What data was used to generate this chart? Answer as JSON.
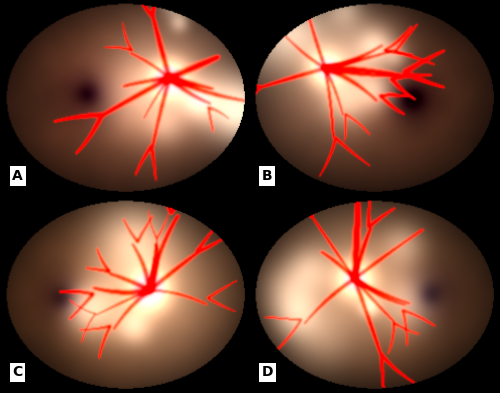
{
  "fig_width": 5.0,
  "fig_height": 3.93,
  "dpi": 100,
  "labels": [
    "A",
    "B",
    "C",
    "D"
  ],
  "label_fontsize": 10,
  "label_color": "black",
  "label_bg_color": "white",
  "bg_color": "black",
  "separator_color": "#aaaaaa",
  "panels": [
    {
      "disc_xf": 0.68,
      "disc_yf": 0.4,
      "mac_xf": 0.35,
      "mac_yf": 0.48,
      "base_r": 0.52,
      "base_g": 0.28,
      "base_b": 0.18,
      "exudate_level": 0.7,
      "vessel_density": 10,
      "seed": 11,
      "disc_bright": 1.0,
      "peridisc_glow": 0.5,
      "label": "A"
    },
    {
      "disc_xf": 0.3,
      "disc_yf": 0.35,
      "mac_xf": 0.65,
      "mac_yf": 0.5,
      "base_r": 0.45,
      "base_g": 0.25,
      "base_b": 0.16,
      "exudate_level": 0.8,
      "vessel_density": 10,
      "seed": 22,
      "disc_bright": 0.9,
      "peridisc_glow": 0.5,
      "label": "B"
    },
    {
      "disc_xf": 0.6,
      "disc_yf": 0.48,
      "mac_xf": 0.25,
      "mac_yf": 0.52,
      "base_r": 0.55,
      "base_g": 0.32,
      "base_b": 0.18,
      "exudate_level": 0.4,
      "vessel_density": 10,
      "seed": 33,
      "disc_bright": 1.1,
      "peridisc_glow": 0.6,
      "label": "C"
    },
    {
      "disc_xf": 0.42,
      "disc_yf": 0.42,
      "mac_xf": 0.72,
      "mac_yf": 0.5,
      "base_r": 0.5,
      "base_g": 0.3,
      "base_b": 0.18,
      "exudate_level": 0.65,
      "vessel_density": 10,
      "seed": 44,
      "disc_bright": 1.0,
      "peridisc_glow": 0.5,
      "label": "D"
    }
  ]
}
